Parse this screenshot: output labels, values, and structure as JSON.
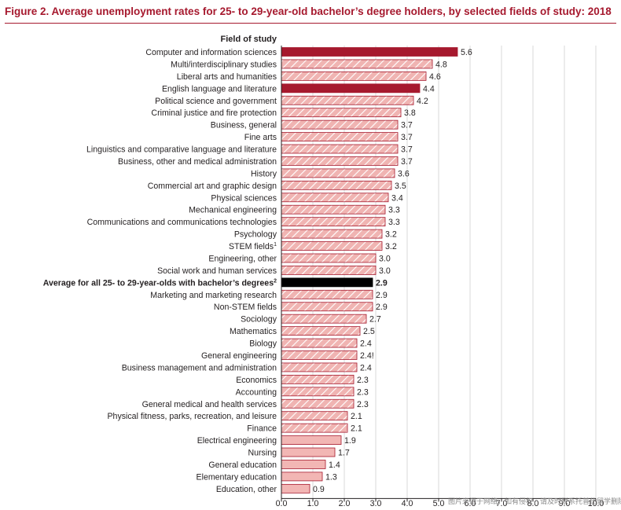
{
  "figure_title": "Figure 2.   Average unemployment rates for 25- to 29-year-old bachelor’s degree holders, by selected fields of study: 2018",
  "watermark": "图片来源于网络，如有侵权，请及时联系托普仕留学删除",
  "colors": {
    "title": "#a6192e",
    "highlight": "#a6192e",
    "average": "#000000",
    "hatch_fill": "#f0b4b2",
    "hatch_stroke": "#ffffff",
    "bar_border": "#a6192e",
    "solid_pink": "#f2b6b4",
    "grid": "#d9d9d9"
  },
  "chart_data": {
    "type": "bar",
    "orientation": "horizontal",
    "title": "Figure 2.   Average unemployment rates for 25- to 29-year-old bachelor’s degree holders, by selected fields of study: 2018",
    "category_header": "Field of study",
    "xlabel": "",
    "ylabel": "Field of study",
    "xlim": [
      0,
      10
    ],
    "x_ticks": [
      "0.0",
      "1.0",
      "2.0",
      "3.0",
      "4.0",
      "5.0",
      "6.0",
      "7.0",
      "8.0",
      "9.0",
      "10.0"
    ],
    "grid": true,
    "categories": [
      {
        "label": "Computer and information sciences",
        "value": 5.6,
        "value_label": "5.6",
        "style": "highlight"
      },
      {
        "label": "Multi/interdisciplinary studies",
        "value": 4.8,
        "value_label": "4.8",
        "style": "hatched"
      },
      {
        "label": "Liberal arts and humanities",
        "value": 4.6,
        "value_label": "4.6",
        "style": "hatched"
      },
      {
        "label": "English language and literature",
        "value": 4.4,
        "value_label": "4.4",
        "style": "highlight"
      },
      {
        "label": "Political science and government",
        "value": 4.2,
        "value_label": "4.2",
        "style": "hatched"
      },
      {
        "label": "Criminal justice and fire protection",
        "value": 3.8,
        "value_label": "3.8",
        "style": "hatched"
      },
      {
        "label": "Business, general",
        "value": 3.7,
        "value_label": "3.7",
        "style": "hatched"
      },
      {
        "label": "Fine arts",
        "value": 3.7,
        "value_label": "3.7",
        "style": "hatched"
      },
      {
        "label": "Linguistics and comparative language and literature",
        "value": 3.7,
        "value_label": "3.7",
        "style": "hatched"
      },
      {
        "label": "Business, other and medical administration",
        "value": 3.7,
        "value_label": "3.7",
        "style": "hatched"
      },
      {
        "label": "History",
        "value": 3.6,
        "value_label": "3.6",
        "style": "hatched"
      },
      {
        "label": "Commercial art and graphic design",
        "value": 3.5,
        "value_label": "3.5",
        "style": "hatched"
      },
      {
        "label": "Physical sciences",
        "value": 3.4,
        "value_label": "3.4",
        "style": "hatched"
      },
      {
        "label": "Mechanical engineering",
        "value": 3.3,
        "value_label": "3.3",
        "style": "hatched"
      },
      {
        "label": "Communications and communications technologies",
        "value": 3.3,
        "value_label": "3.3",
        "style": "hatched"
      },
      {
        "label": "Psychology",
        "value": 3.2,
        "value_label": "3.2",
        "style": "hatched"
      },
      {
        "label": "STEM fields",
        "sup": "1",
        "value": 3.2,
        "value_label": "3.2",
        "style": "hatched"
      },
      {
        "label": "Engineering, other",
        "value": 3.0,
        "value_label": "3.0",
        "style": "hatched"
      },
      {
        "label": "Social work and human services",
        "value": 3.0,
        "value_label": "3.0",
        "style": "hatched"
      },
      {
        "label": "Average for all 25- to 29-year-olds with bachelor’s degrees",
        "sup": "2",
        "value": 2.9,
        "value_label": "2.9",
        "style": "average"
      },
      {
        "label": "Marketing and marketing research",
        "value": 2.9,
        "value_label": "2.9",
        "style": "hatched"
      },
      {
        "label": "Non-STEM fields",
        "value": 2.9,
        "value_label": "2.9",
        "style": "hatched"
      },
      {
        "label": "Sociology",
        "value": 2.7,
        "value_label": "2.7",
        "style": "hatched"
      },
      {
        "label": "Mathematics",
        "value": 2.5,
        "value_label": "2.5",
        "style": "hatched"
      },
      {
        "label": "Biology",
        "value": 2.4,
        "value_label": "2.4",
        "style": "hatched"
      },
      {
        "label": "General engineering",
        "value": 2.4,
        "value_label": "2.4!",
        "style": "hatched"
      },
      {
        "label": "Business management and administration",
        "value": 2.4,
        "value_label": "2.4",
        "style": "hatched"
      },
      {
        "label": "Economics",
        "value": 2.3,
        "value_label": "2.3",
        "style": "hatched"
      },
      {
        "label": "Accounting",
        "value": 2.3,
        "value_label": "2.3",
        "style": "hatched"
      },
      {
        "label": "General medical and health services",
        "value": 2.3,
        "value_label": "2.3",
        "style": "hatched"
      },
      {
        "label": "Physical fitness, parks, recreation, and leisure",
        "value": 2.1,
        "value_label": "2.1",
        "style": "hatched"
      },
      {
        "label": "Finance",
        "value": 2.1,
        "value_label": "2.1",
        "style": "hatched"
      },
      {
        "label": "Electrical engineering",
        "value": 1.9,
        "value_label": "1.9",
        "style": "solid"
      },
      {
        "label": "Nursing",
        "value": 1.7,
        "value_label": "1.7",
        "style": "solid"
      },
      {
        "label": "General education",
        "value": 1.4,
        "value_label": "1.4",
        "style": "solid"
      },
      {
        "label": "Elementary education",
        "value": 1.3,
        "value_label": "1.3",
        "style": "solid"
      },
      {
        "label": "Education, other",
        "value": 0.9,
        "value_label": "0.9",
        "style": "solid"
      }
    ]
  }
}
